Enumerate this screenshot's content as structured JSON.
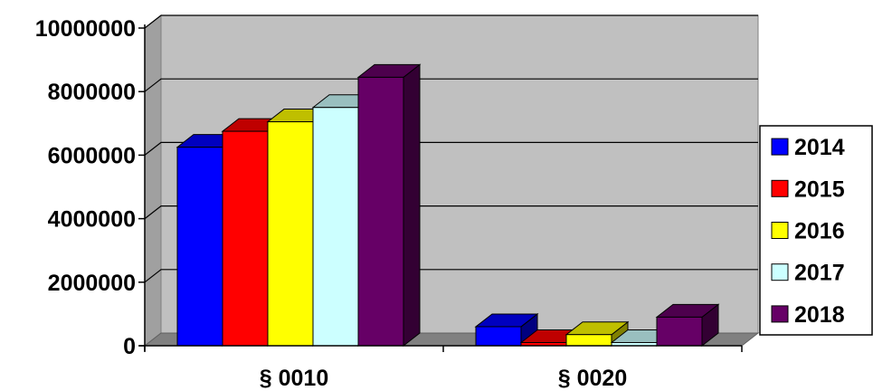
{
  "chart_data": {
    "type": "bar",
    "title": "",
    "xlabel": "",
    "ylabel": "",
    "categories": [
      "§ 0010",
      "§ 0020"
    ],
    "series": [
      {
        "name": "2014",
        "color": "#0000FF",
        "values": [
          6250000,
          600000
        ]
      },
      {
        "name": "2015",
        "color": "#FF0000",
        "values": [
          6750000,
          100000
        ]
      },
      {
        "name": "2016",
        "color": "#FFFF00",
        "values": [
          7050000,
          350000
        ]
      },
      {
        "name": "2017",
        "color": "#CCFFFF",
        "values": [
          7500000,
          100000
        ]
      },
      {
        "name": "2018",
        "color": "#660066",
        "values": [
          8450000,
          900000
        ]
      }
    ],
    "ylim": [
      0,
      10000000
    ],
    "yticks": [
      "0",
      "2000000",
      "4000000",
      "6000000",
      "8000000",
      "10000000"
    ],
    "grid": true,
    "legend_position": "right",
    "plot_background": "#C0C0C0"
  }
}
